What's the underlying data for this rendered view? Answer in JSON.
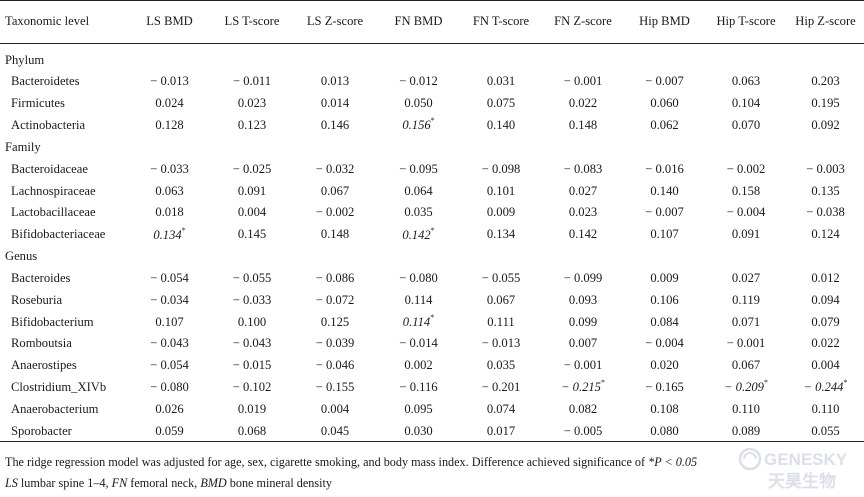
{
  "columns": [
    "Taxonomic level",
    "LS BMD",
    "LS T-score",
    "LS Z-score",
    "FN BMD",
    "FN T-score",
    "FN Z-score",
    "Hip BMD",
    "Hip T-score",
    "Hip Z-score"
  ],
  "groups": [
    {
      "name": "Phylum",
      "rows": [
        {
          "taxon": "Bacteroidetes",
          "values": [
            "− 0.013",
            "− 0.011",
            "0.013",
            "− 0.012",
            "0.031",
            "− 0.001",
            "− 0.007",
            "0.063",
            "0.203"
          ],
          "sig": []
        },
        {
          "taxon": "Firmicutes",
          "values": [
            "0.024",
            "0.023",
            "0.014",
            "0.050",
            "0.075",
            "0.022",
            "0.060",
            "0.104",
            "0.195"
          ],
          "sig": []
        },
        {
          "taxon": "Actinobacteria",
          "values": [
            "0.128",
            "0.123",
            "0.146",
            "0.156",
            "0.140",
            "0.148",
            "0.062",
            "0.070",
            "0.092"
          ],
          "sig": [
            3
          ]
        }
      ]
    },
    {
      "name": "Family",
      "rows": [
        {
          "taxon": "Bacteroidaceae",
          "values": [
            "− 0.033",
            "− 0.025",
            "− 0.032",
            "− 0.095",
            "− 0.098",
            "− 0.083",
            "− 0.016",
            "− 0.002",
            "− 0.003"
          ],
          "sig": []
        },
        {
          "taxon": "Lachnospiraceae",
          "values": [
            "0.063",
            "0.091",
            "0.067",
            "0.064",
            "0.101",
            "0.027",
            "0.140",
            "0.158",
            "0.135"
          ],
          "sig": []
        },
        {
          "taxon": "Lactobacillaceae",
          "values": [
            "0.018",
            "0.004",
            "− 0.002",
            "0.035",
            "0.009",
            "0.023",
            "− 0.007",
            "− 0.004",
            "− 0.038"
          ],
          "sig": []
        },
        {
          "taxon": "Bifidobacteriaceae",
          "values": [
            "0.134",
            "0.145",
            "0.148",
            "0.142",
            "0.134",
            "0.142",
            "0.107",
            "0.091",
            "0.124"
          ],
          "sig": [
            0,
            3
          ]
        }
      ]
    },
    {
      "name": "Genus",
      "rows": [
        {
          "taxon": "Bacteroides",
          "values": [
            "− 0.054",
            "− 0.055",
            "− 0.086",
            "− 0.080",
            "− 0.055",
            "− 0.099",
            "0.009",
            "0.027",
            "0.012"
          ],
          "sig": []
        },
        {
          "taxon": "Roseburia",
          "values": [
            "− 0.034",
            "− 0.033",
            "− 0.072",
            "0.114",
            "0.067",
            "0.093",
            "0.106",
            "0.119",
            "0.094"
          ],
          "sig": []
        },
        {
          "taxon": "Bifidobacterium",
          "values": [
            "0.107",
            "0.100",
            "0.125",
            "0.114",
            "0.111",
            "0.099",
            "0.084",
            "0.071",
            "0.079"
          ],
          "sig": [
            3
          ]
        },
        {
          "taxon": "Romboutsia",
          "values": [
            "− 0.043",
            "− 0.043",
            "− 0.039",
            "− 0.014",
            "− 0.013",
            "0.007",
            "− 0.004",
            "− 0.001",
            "0.022"
          ],
          "sig": []
        },
        {
          "taxon": "Anaerostipes",
          "values": [
            "− 0.054",
            "− 0.015",
            "− 0.046",
            "0.002",
            "0.035",
            "− 0.001",
            "0.020",
            "0.067",
            "0.004"
          ],
          "sig": []
        },
        {
          "taxon": "Clostridium_XIVb",
          "values": [
            "− 0.080",
            "− 0.102",
            "− 0.155",
            "− 0.116",
            "− 0.201",
            "− 0.215",
            "− 0.165",
            "− 0.209",
            "− 0.244"
          ],
          "sig": [
            5,
            7,
            8
          ]
        },
        {
          "taxon": "Anaerobacterium",
          "values": [
            "0.026",
            "0.019",
            "0.004",
            "0.095",
            "0.074",
            "0.082",
            "0.108",
            "0.110",
            "0.110"
          ],
          "sig": []
        },
        {
          "taxon": "Sporobacter",
          "values": [
            "0.059",
            "0.068",
            "0.045",
            "0.030",
            "0.017",
            "− 0.005",
            "0.080",
            "0.089",
            "0.055"
          ],
          "sig": []
        }
      ]
    }
  ],
  "sig_marker": "*",
  "footnote": {
    "line1_text": "The ridge regression model was adjusted for age, sex, cigarette smoking, and body mass index. Difference achieved significance of ",
    "line1_marker": "*P < 0.05",
    "abbr": [
      {
        "abbr": "LS",
        "text": " lumbar spine 1–4, "
      },
      {
        "abbr": "FN",
        "text": " femoral neck, "
      },
      {
        "abbr": "BMD",
        "text": " bone mineral density"
      }
    ]
  },
  "watermark": {
    "line1": "GENESKY",
    "line2": "天昊生物",
    "color": "#7f8fb0"
  }
}
